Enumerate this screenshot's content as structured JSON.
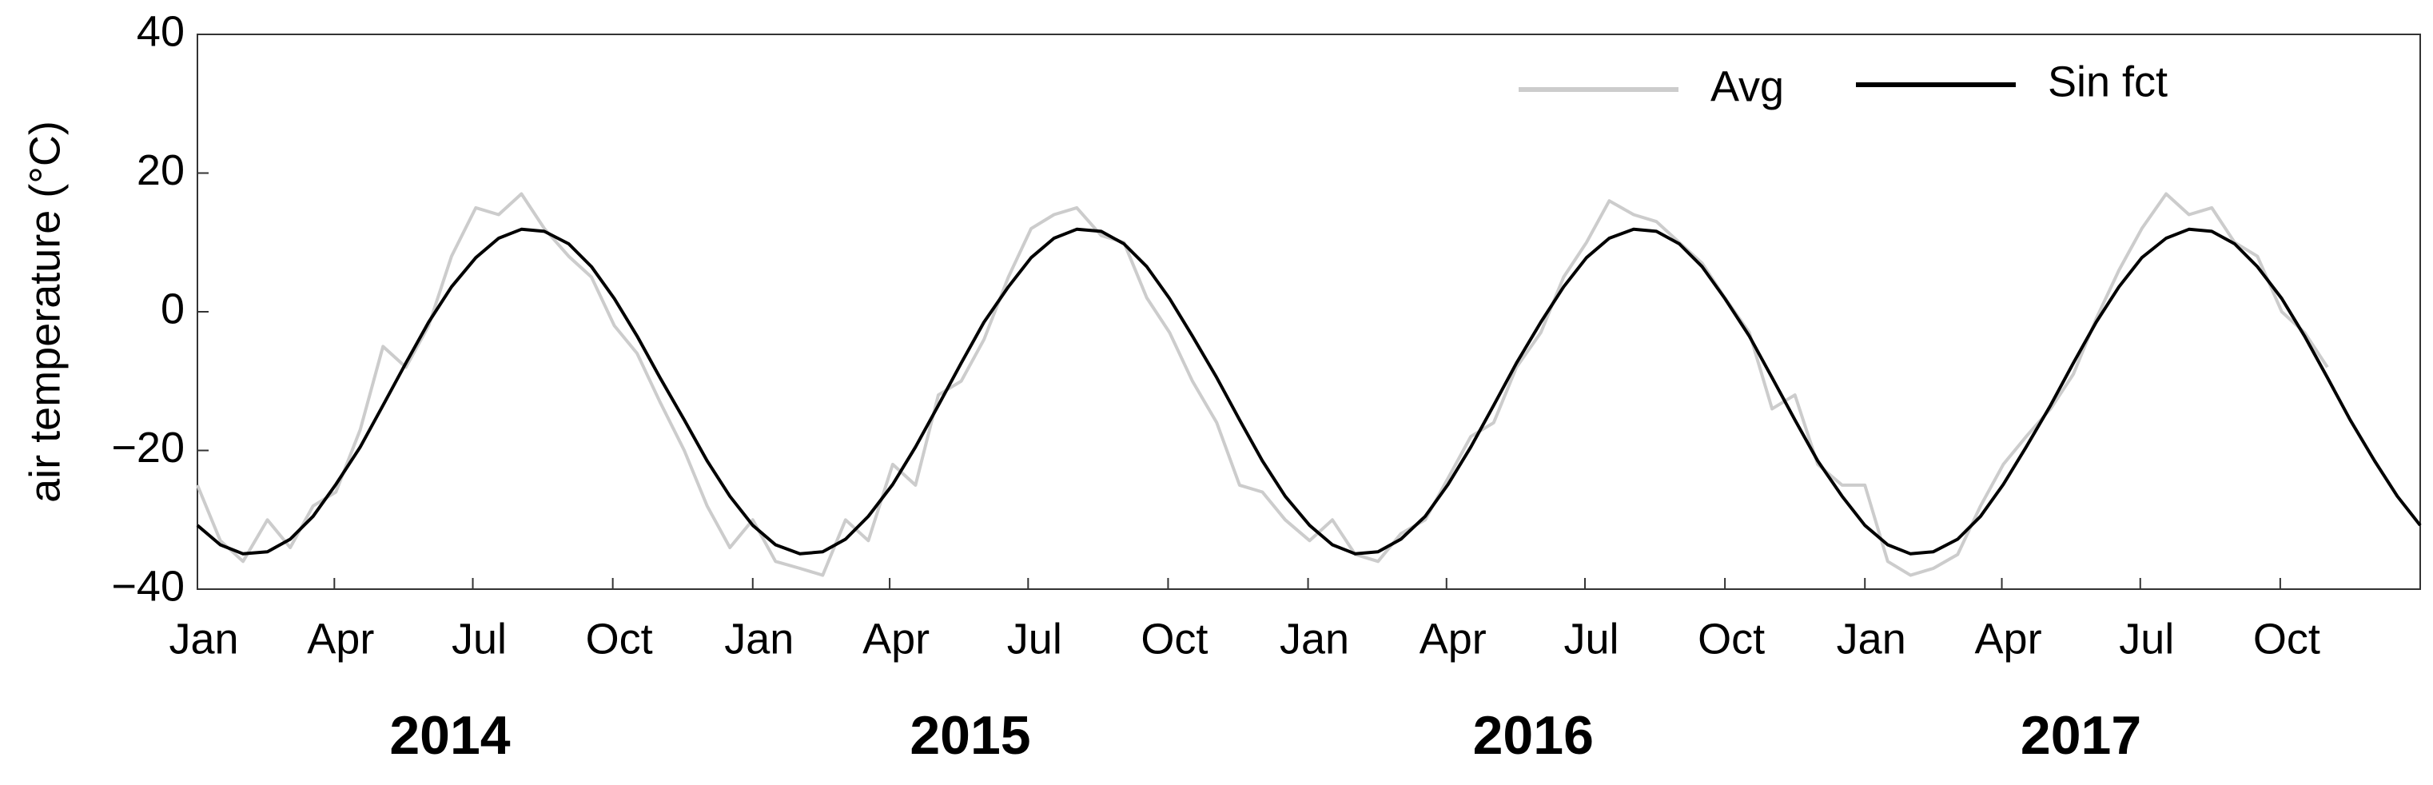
{
  "chart_data": {
    "type": "line",
    "y_label": "air temperature (°C)",
    "x": [
      0,
      15,
      30,
      46,
      61,
      76,
      91,
      107,
      122,
      137,
      152,
      167,
      183,
      198,
      213,
      228,
      244,
      259,
      274,
      289,
      304,
      320,
      335,
      350,
      365,
      380,
      396,
      411,
      426,
      441,
      457,
      472,
      487,
      502,
      517,
      533,
      548,
      563,
      578,
      594,
      609,
      624,
      639,
      654,
      670,
      685,
      700,
      715,
      731,
      746,
      761,
      776,
      791,
      807,
      822,
      837,
      852,
      867,
      883,
      898,
      913,
      928,
      944,
      959,
      974,
      989,
      1004,
      1020,
      1035,
      1050,
      1065,
      1081,
      1096,
      1111,
      1126,
      1141,
      1157,
      1172,
      1187,
      1202,
      1218,
      1233,
      1248,
      1263,
      1278,
      1294,
      1309,
      1324,
      1339,
      1354,
      1370,
      1385,
      1400,
      1415,
      1431,
      1446,
      1461
    ],
    "series": [
      {
        "name": "Avg",
        "color": "#cccccc",
        "values": [
          -25,
          -33,
          -36,
          -30,
          -34,
          -28,
          -26,
          -17,
          -5,
          -8,
          -2,
          8,
          15,
          14,
          17,
          12,
          8,
          5,
          -2,
          -6,
          -13,
          -20,
          -28,
          -34,
          -30,
          -36,
          -37,
          -38,
          -30,
          -33,
          -22,
          -25,
          -12,
          -10,
          -4,
          5,
          12,
          14,
          15,
          11,
          10,
          2,
          -3,
          -10,
          -16,
          -25,
          -26,
          -30,
          -33,
          -30,
          -35,
          -36,
          -32,
          -30,
          -24,
          -18,
          -16,
          -8,
          -3,
          5,
          10,
          16,
          14,
          13,
          10,
          7,
          2,
          -3,
          -14,
          -12,
          -22,
          -25,
          -25,
          -36,
          -38,
          -37,
          -35,
          -28,
          -22,
          -18,
          -14,
          -9,
          -1,
          6,
          12,
          17,
          14,
          15,
          10,
          8,
          0,
          -3,
          -8,
          null,
          null,
          null,
          null
        ]
      },
      {
        "name": "Sin fct",
        "color": "#000000",
        "values": [
          -30.8,
          -33.6,
          -34.9,
          -34.6,
          -32.8,
          -29.5,
          -24.9,
          -19.5,
          -13.5,
          -7.4,
          -1.5,
          3.6,
          7.8,
          10.6,
          11.9,
          11.6,
          9.8,
          6.5,
          1.9,
          -3.5,
          -9.5,
          -15.6,
          -21.5,
          -26.6,
          -30.8,
          -33.6,
          -34.9,
          -34.6,
          -32.8,
          -29.5,
          -24.9,
          -19.5,
          -13.5,
          -7.4,
          -1.5,
          3.6,
          7.8,
          10.6,
          11.9,
          11.6,
          9.8,
          6.5,
          1.9,
          -3.5,
          -9.5,
          -15.6,
          -21.5,
          -26.6,
          -30.8,
          -33.6,
          -34.9,
          -34.6,
          -32.8,
          -29.5,
          -24.9,
          -19.5,
          -13.5,
          -7.4,
          -1.5,
          3.6,
          7.8,
          10.6,
          11.9,
          11.6,
          9.8,
          6.5,
          1.9,
          -3.5,
          -9.5,
          -15.6,
          -21.5,
          -26.6,
          -30.8,
          -33.6,
          -34.9,
          -34.6,
          -32.8,
          -29.5,
          -24.9,
          -19.5,
          -13.5,
          -7.4,
          -1.5,
          3.6,
          7.8,
          10.6,
          11.9,
          11.6,
          9.8,
          6.5,
          1.9,
          -3.5,
          -9.5,
          -15.6,
          -21.5,
          -26.6,
          -30.8
        ]
      }
    ],
    "xlim": [
      0,
      1461
    ],
    "xticks": [
      {
        "value": 0,
        "label": "Jan"
      },
      {
        "value": 90,
        "label": "Apr"
      },
      {
        "value": 181,
        "label": "Jul"
      },
      {
        "value": 273,
        "label": "Oct"
      },
      {
        "value": 365,
        "label": "Jan"
      },
      {
        "value": 455,
        "label": "Apr"
      },
      {
        "value": 546,
        "label": "Jul"
      },
      {
        "value": 638,
        "label": "Oct"
      },
      {
        "value": 730,
        "label": "Jan"
      },
      {
        "value": 821,
        "label": "Apr"
      },
      {
        "value": 912,
        "label": "Jul"
      },
      {
        "value": 1004,
        "label": "Oct"
      },
      {
        "value": 1096,
        "label": "Jan"
      },
      {
        "value": 1186,
        "label": "Apr"
      },
      {
        "value": 1277,
        "label": "Jul"
      },
      {
        "value": 1369,
        "label": "Oct"
      }
    ],
    "year_labels": [
      {
        "value": 166,
        "label": "2014"
      },
      {
        "value": 508,
        "label": "2015"
      },
      {
        "value": 878,
        "label": "2016"
      },
      {
        "value": 1238,
        "label": "2017"
      }
    ],
    "ylim": [
      -40,
      40
    ],
    "yticks": [
      {
        "value": -40,
        "label": "−40"
      },
      {
        "value": -20,
        "label": "−20"
      },
      0,
      20,
      40
    ],
    "legend": "upper right",
    "grid": false
  }
}
